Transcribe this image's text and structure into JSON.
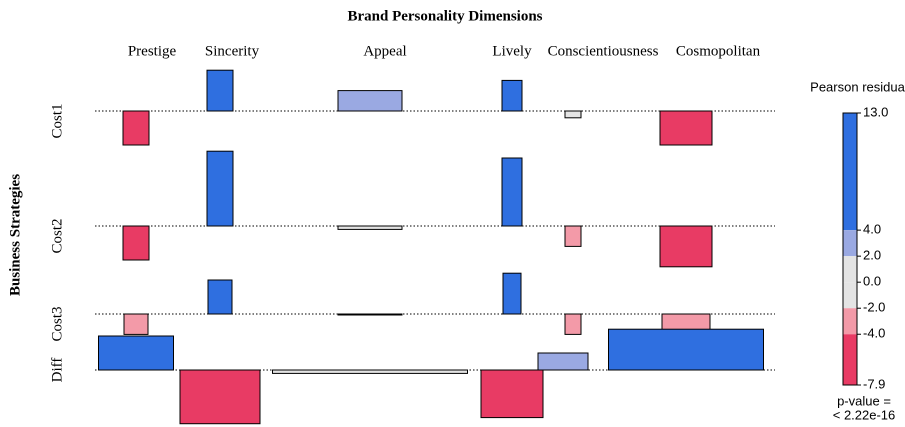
{
  "chart_data": {
    "type": "association",
    "title": "Brand Personality Dimensions",
    "ylabel": "Business Strategies",
    "columns": [
      "Prestige",
      "Sincerity",
      "Appeal",
      "Lively",
      "Conscientiousness",
      "Cosmopolitan"
    ],
    "rows": [
      "Cost1",
      "Cost2",
      "Cost3",
      "Diff"
    ],
    "values": [
      [
        -5,
        6,
        3,
        4.5,
        -1,
        -5
      ],
      [
        -5,
        11,
        -0.5,
        10,
        -3,
        -6
      ],
      [
        -3,
        5,
        0,
        6,
        -3,
        -3
      ],
      [
        5,
        -7.9,
        -0.5,
        -7,
        2.5,
        6
      ]
    ],
    "legend_title": "Pearson residuals:",
    "legend_lim": [
      -7.9,
      13
    ],
    "legend_ticks": [
      {
        "value": 13,
        "label": "13.0"
      },
      {
        "value": 4,
        "label": "4.0"
      },
      {
        "value": 2,
        "label": "2.0"
      },
      {
        "value": 0,
        "label": "0.0"
      },
      {
        "value": -2,
        "label": "-2.0"
      },
      {
        "value": -4,
        "label": "-4.0"
      },
      -7.9
    ],
    "colors": [
      "#e83b64",
      "#f39aa8",
      "#e4e4e4",
      "#9aa9e2",
      "#2f6fe0"
    ],
    "p_value_label": "p-value =",
    "p_value": "< 2.22e-16"
  }
}
